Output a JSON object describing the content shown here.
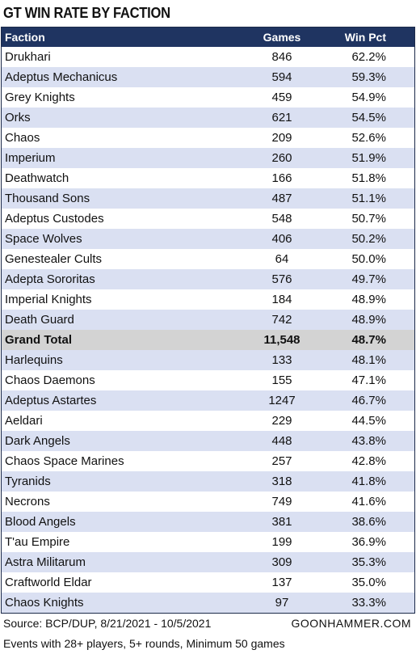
{
  "title": "GT WIN RATE BY FACTION",
  "table": {
    "columns": [
      "Faction",
      "Games",
      "Win Pct"
    ],
    "rows_above": [
      [
        "Drukhari",
        "846",
        "62.2%"
      ],
      [
        "Adeptus Mechanicus",
        "594",
        "59.3%"
      ],
      [
        "Grey Knights",
        "459",
        "54.9%"
      ],
      [
        "Orks",
        "621",
        "54.5%"
      ],
      [
        "Chaos",
        "209",
        "52.6%"
      ],
      [
        "Imperium",
        "260",
        "51.9%"
      ],
      [
        "Deathwatch",
        "166",
        "51.8%"
      ],
      [
        "Thousand Sons",
        "487",
        "51.1%"
      ],
      [
        "Adeptus Custodes",
        "548",
        "50.7%"
      ],
      [
        "Space Wolves",
        "406",
        "50.2%"
      ],
      [
        "Genestealer Cults",
        "64",
        "50.0%"
      ],
      [
        "Adepta Sororitas",
        "576",
        "49.7%"
      ],
      [
        "Imperial Knights",
        "184",
        "48.9%"
      ],
      [
        "Death Guard",
        "742",
        "48.9%"
      ]
    ],
    "total": [
      "Grand Total",
      "11,548",
      "48.7%"
    ],
    "rows_below": [
      [
        "Harlequins",
        "133",
        "48.1%"
      ],
      [
        "Chaos Daemons",
        "155",
        "47.1%"
      ],
      [
        "Adeptus Astartes",
        "1247",
        "46.7%"
      ],
      [
        "Aeldari",
        "229",
        "44.5%"
      ],
      [
        "Dark Angels",
        "448",
        "43.8%"
      ],
      [
        "Chaos Space Marines",
        "257",
        "42.8%"
      ],
      [
        "Tyranids",
        "318",
        "41.8%"
      ],
      [
        "Necrons",
        "749",
        "41.6%"
      ],
      [
        "Blood Angels",
        "381",
        "38.6%"
      ],
      [
        "T'au Empire",
        "199",
        "36.9%"
      ],
      [
        "Astra Militarum",
        "309",
        "35.3%"
      ],
      [
        "Craftworld Eldar",
        "137",
        "35.0%"
      ],
      [
        "Chaos Knights",
        "97",
        "33.3%"
      ]
    ]
  },
  "footer": {
    "source": "Source: BCP/DUP, 8/21/2021 - 10/5/2021",
    "site": "GOONHAMMER.COM",
    "note": "Events with 28+ players, 5+ rounds, Minimum 50 games"
  }
}
